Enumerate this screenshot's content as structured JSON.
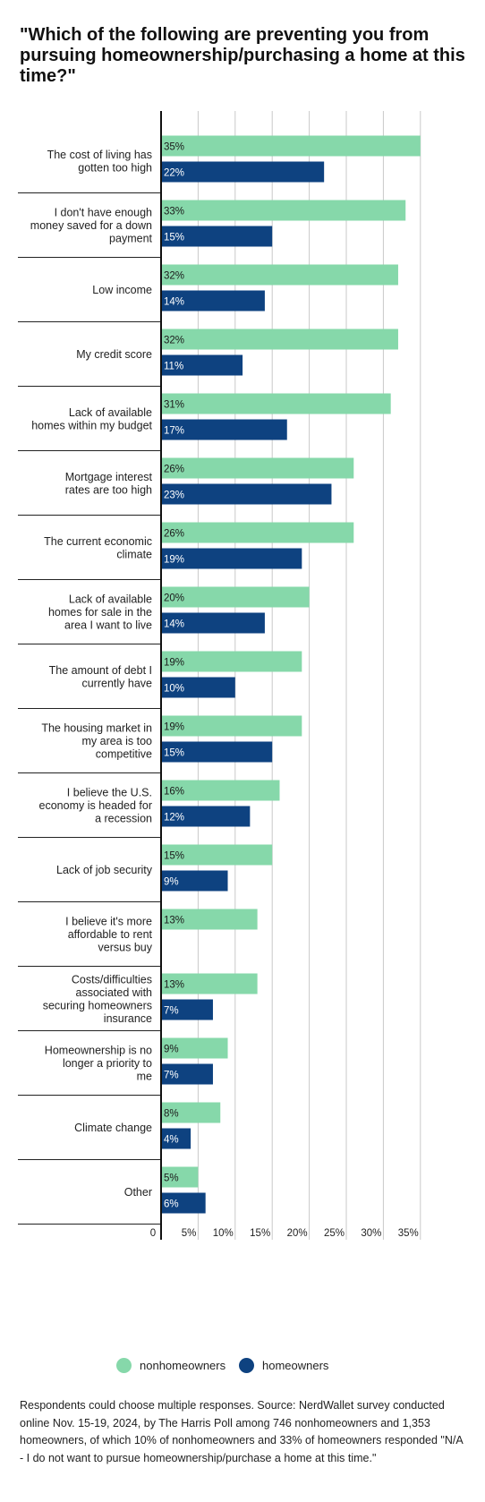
{
  "chart_data": {
    "type": "bar",
    "orientation": "horizontal",
    "title": "\"Which of the following are preventing you from pursuing homeownership/purchasing a home at this time?\"",
    "categories": [
      "The cost of living has gotten too high",
      "I don't have enough money saved for a down payment",
      "Low income",
      "My credit score",
      "Lack of available homes within my budget",
      "Mortgage interest rates are too high",
      "The current economic climate",
      "Lack of available homes for sale in the area I want to live",
      "The amount of debt I currently have",
      "The housing market in my area is too competitive",
      "I believe the U.S. economy is headed for a recession",
      "Lack of job security",
      "I believe it's more affordable to rent versus buy",
      "Costs/difficulties associated with securing homeowners insurance",
      "Homeownership is no longer a priority to me",
      "Climate change",
      "Other"
    ],
    "series": [
      {
        "name": "nonhomeowners",
        "color": "#86d8aa",
        "values": [
          35,
          33,
          32,
          32,
          31,
          26,
          26,
          20,
          19,
          19,
          16,
          15,
          13,
          13,
          9,
          8,
          5
        ],
        "labels": [
          "35%",
          "33%",
          "32%",
          "32%",
          "31%",
          "26%",
          "26%",
          "20%",
          "19%",
          "19%",
          "16%",
          "15%",
          "13%",
          "13%",
          "9%",
          "8%",
          "5%"
        ]
      },
      {
        "name": "homeowners",
        "color": "#0e4280",
        "values": [
          22,
          15,
          14,
          11,
          17,
          23,
          19,
          14,
          10,
          15,
          12,
          9,
          null,
          7,
          7,
          4,
          6
        ],
        "labels": [
          "22%",
          "15%",
          "14%",
          "11%",
          "17%",
          "23%",
          "19%",
          "14%",
          "10%",
          "15%",
          "12%",
          "9%",
          "",
          "7%",
          "7%",
          "4%",
          "6%"
        ]
      }
    ],
    "x_ticks": [
      0,
      5,
      10,
      15,
      20,
      25,
      30,
      35
    ],
    "x_tick_labels": [
      "0",
      "5%",
      "10%",
      "15%",
      "20%",
      "25%",
      "30%",
      "35%"
    ],
    "xlim": [
      0,
      35.5
    ],
    "grid": true,
    "legend_position": "bottom-center"
  },
  "footnote": "Respondents could choose multiple responses. Source: NerdWallet survey conducted online Nov. 15-19, 2024, by The Harris Poll among 746 nonhomeowners and 1,353 homeowners, of which 10% of nonhomeowners and 33% of homeowners responded \"N/A - I do not want to pursue homeownership/purchase a home at this time.\""
}
